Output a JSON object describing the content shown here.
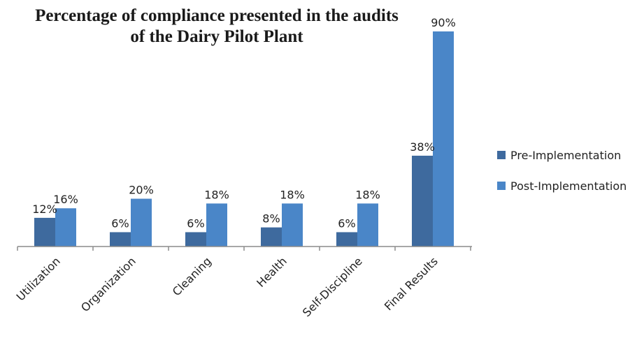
{
  "chart_data": {
    "type": "bar",
    "title": "Percentage of compliance presented in the audits of the Dairy Pilot Plant",
    "categories": [
      "Utilization",
      "Organization",
      "Cleaning",
      "Health",
      "Self-Discipline",
      "Final Results"
    ],
    "series": [
      {
        "name": "Pre-Implementation",
        "values": [
          12,
          6,
          6,
          8,
          6,
          38
        ],
        "labels": [
          "12%",
          "6%",
          "6%",
          "8%",
          "6%",
          "38%"
        ],
        "color": "#3e6a9e"
      },
      {
        "name": "Post-Implementation",
        "values": [
          16,
          20,
          18,
          18,
          18,
          90
        ],
        "labels": [
          "16%",
          "20%",
          "18%",
          "18%",
          "18%",
          "90%"
        ],
        "color": "#4a86c8"
      }
    ],
    "ylim": [
      0,
      90
    ],
    "grid": false,
    "legend_position": "right"
  }
}
